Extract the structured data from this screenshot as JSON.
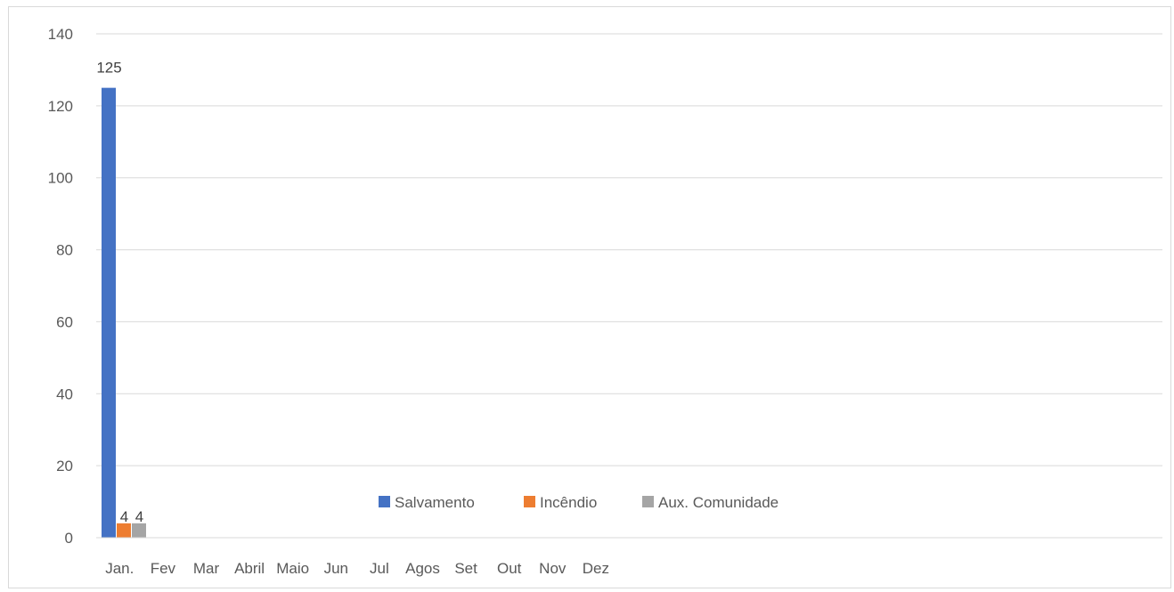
{
  "chart_data": {
    "type": "bar",
    "title": "",
    "xlabel": "",
    "ylabel": "",
    "categories": [
      "Jan.",
      "Fev",
      "Mar",
      "Abril",
      "Maio",
      "Jun",
      "Jul",
      "Agos",
      "Set",
      "Out",
      "Nov",
      "Dez"
    ],
    "series": [
      {
        "name": "Salvamento",
        "color": "#4472c4",
        "values": [
          125,
          null,
          null,
          null,
          null,
          null,
          null,
          null,
          null,
          null,
          null,
          null
        ]
      },
      {
        "name": "Incêndio",
        "color": "#ed7d31",
        "values": [
          4,
          null,
          null,
          null,
          null,
          null,
          null,
          null,
          null,
          null,
          null,
          null
        ]
      },
      {
        "name": "Aux. Comunidade",
        "color": "#a5a5a5",
        "values": [
          4,
          null,
          null,
          null,
          null,
          null,
          null,
          null,
          null,
          null,
          null,
          null
        ]
      }
    ],
    "ylim": [
      0,
      140
    ],
    "yticks": [
      0,
      20,
      40,
      60,
      80,
      100,
      120,
      140
    ],
    "grid": true,
    "legend": "bottom-center"
  }
}
